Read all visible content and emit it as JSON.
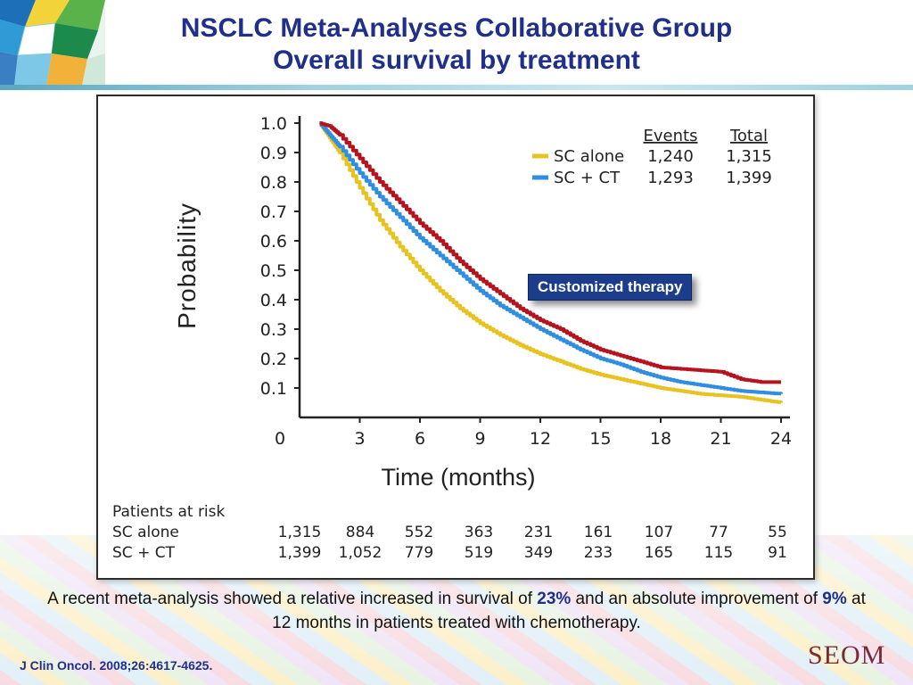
{
  "header": {
    "title_line1": "NSCLC Meta-Analyses Collaborative Group",
    "title_line2": "Overall survival by treatment"
  },
  "badge": {
    "label": "Customized therapy"
  },
  "caption": {
    "part1": "A recent meta-analysis showed a relative increased in survival of ",
    "pct1": "23%",
    "part2": " and an absolute improvement of ",
    "pct2": "9%",
    "part3": " at 12 months in patients treated with chemotherapy."
  },
  "citation": "J Clin Oncol. 2008;26:4617-4625.",
  "brand": "SEOM",
  "colors": {
    "sc_alone": "#e8c21e",
    "sc_ct": "#2f8ee0",
    "red": "#b5141e",
    "title": "#1f2f8a"
  },
  "chart_data": {
    "type": "line",
    "title": "",
    "xlabel": "Time (months)",
    "ylabel": "Probability",
    "xlim": [
      0,
      24
    ],
    "ylim": [
      0,
      1.0
    ],
    "x_ticks": [
      "0",
      "3",
      "6",
      "9",
      "12",
      "15",
      "18",
      "21",
      "24"
    ],
    "y_ticks": [
      "0.1",
      "0.2",
      "0.3",
      "0.4",
      "0.5",
      "0.6",
      "0.7",
      "0.8",
      "0.9",
      "1.0"
    ],
    "legend": {
      "position": "top-right",
      "headers": [
        "Events",
        "Total"
      ],
      "entries": [
        {
          "label": "SC alone",
          "events": "1,240",
          "total": "1,315"
        },
        {
          "label": "SC + CT",
          "events": "1,293",
          "total": "1,399"
        }
      ]
    },
    "series": [
      {
        "name": "SC alone",
        "color": "#e8c21e",
        "x": [
          1,
          1.5,
          2,
          3,
          4,
          5,
          6,
          7,
          8,
          9,
          10,
          11,
          12,
          13,
          14,
          15,
          16,
          17,
          18,
          19,
          20,
          21,
          22,
          23,
          24
        ],
        "y": [
          1.0,
          0.95,
          0.9,
          0.78,
          0.67,
          0.58,
          0.5,
          0.43,
          0.37,
          0.32,
          0.28,
          0.245,
          0.215,
          0.19,
          0.165,
          0.145,
          0.13,
          0.115,
          0.1,
          0.09,
          0.08,
          0.075,
          0.07,
          0.06,
          0.05
        ]
      },
      {
        "name": "SC + CT",
        "color": "#2f8ee0",
        "x": [
          1,
          1.5,
          2,
          3,
          4,
          5,
          6,
          7,
          8,
          9,
          10,
          11,
          12,
          13,
          14,
          15,
          16,
          17,
          18,
          19,
          20,
          21,
          22,
          23,
          24
        ],
        "y": [
          1.0,
          0.96,
          0.92,
          0.83,
          0.75,
          0.68,
          0.61,
          0.55,
          0.49,
          0.43,
          0.38,
          0.34,
          0.3,
          0.265,
          0.23,
          0.2,
          0.18,
          0.155,
          0.135,
          0.12,
          0.11,
          0.1,
          0.09,
          0.085,
          0.08
        ]
      },
      {
        "name": "",
        "color": "#b5141e",
        "x": [
          1,
          1.5,
          2,
          3,
          4,
          5,
          6,
          7,
          8,
          9,
          10,
          11,
          12,
          13,
          14,
          15,
          16,
          17,
          18,
          19,
          20,
          21,
          22,
          23,
          24
        ],
        "y": [
          1.0,
          0.99,
          0.96,
          0.88,
          0.8,
          0.73,
          0.66,
          0.6,
          0.53,
          0.47,
          0.42,
          0.37,
          0.33,
          0.3,
          0.26,
          0.23,
          0.21,
          0.19,
          0.17,
          0.165,
          0.16,
          0.155,
          0.13,
          0.12,
          0.12
        ]
      }
    ],
    "risk_table": {
      "title": "Patients at risk",
      "rows": [
        {
          "label": "SC alone",
          "values": [
            "1,315",
            "884",
            "552",
            "363",
            "231",
            "161",
            "107",
            "77",
            "55"
          ]
        },
        {
          "label": "SC + CT",
          "values": [
            "1,399",
            "1,052",
            "779",
            "519",
            "349",
            "233",
            "165",
            "115",
            "91"
          ]
        }
      ]
    }
  }
}
